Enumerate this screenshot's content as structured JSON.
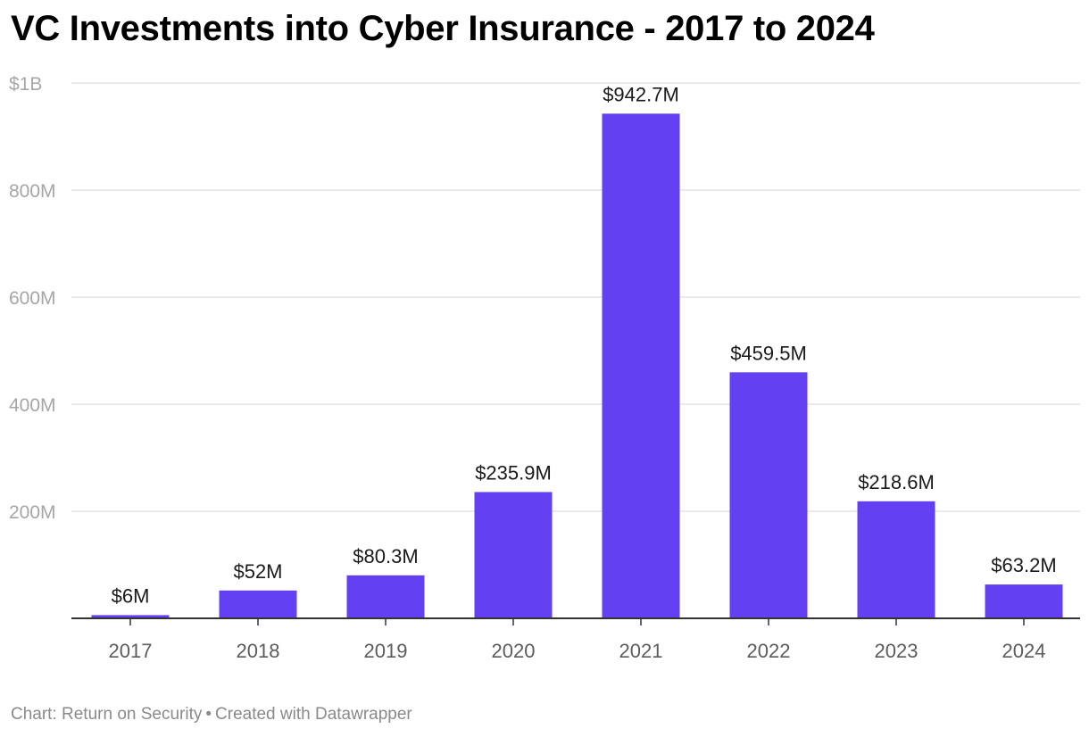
{
  "chart_data": {
    "type": "bar",
    "title": "VC Investments into Cyber Insurance - 2017 to 2024",
    "xlabel": "",
    "ylabel": "",
    "categories": [
      "2017",
      "2018",
      "2019",
      "2020",
      "2021",
      "2022",
      "2023",
      "2024"
    ],
    "values": [
      6,
      52,
      80.3,
      235.9,
      942.7,
      459.5,
      218.6,
      63.2
    ],
    "value_labels": [
      "$6M",
      "$52M",
      "$80.3M",
      "$235.9M",
      "$942.7M",
      "$459.5M",
      "$218.6M",
      "$63.2M"
    ],
    "unit": "millions USD",
    "ylim": [
      0,
      1000
    ],
    "yticks": [
      {
        "value": 200,
        "label": "200M"
      },
      {
        "value": 400,
        "label": "400M"
      },
      {
        "value": 600,
        "label": "600M"
      },
      {
        "value": 800,
        "label": "800M"
      },
      {
        "value": 1000,
        "label": "$1B"
      }
    ],
    "grid": true,
    "bar_color": "#6340f2"
  },
  "footer": {
    "source": "Chart: Return on Security",
    "separator": "•",
    "credit": "Created with Datawrapper"
  }
}
